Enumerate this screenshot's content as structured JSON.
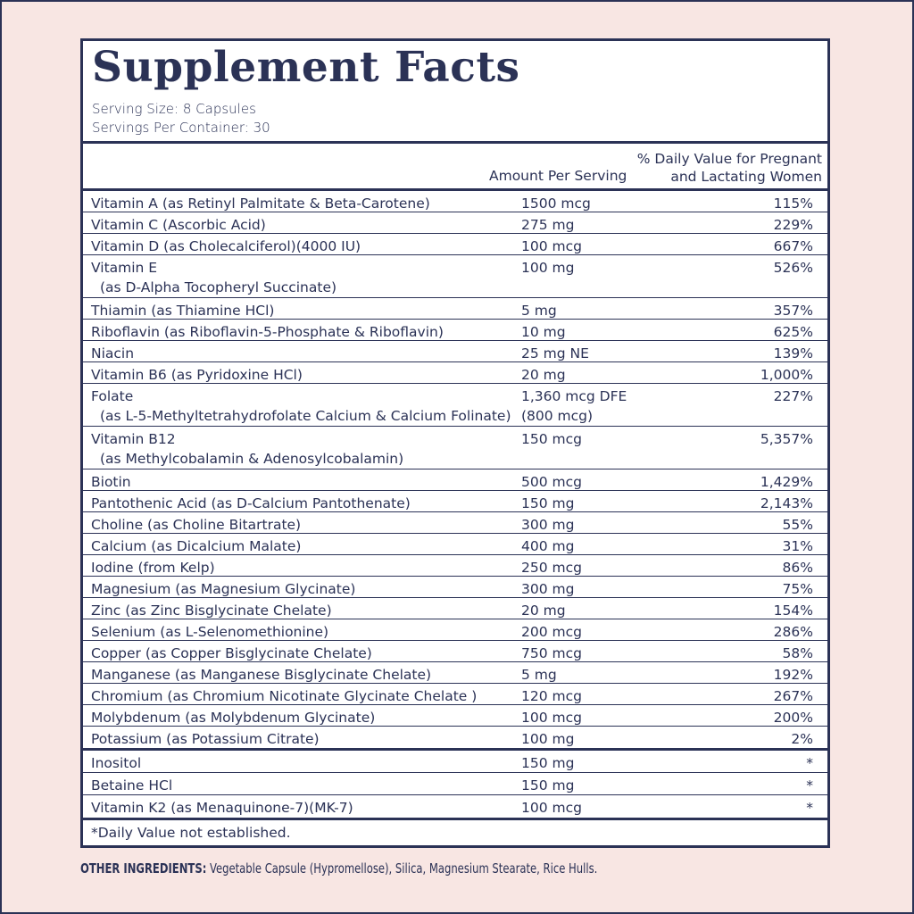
{
  "header": {
    "title": "Supplement Facts",
    "serving_size": "Serving Size: 8 Capsules",
    "servings_per_container": "Servings Per Container: 30"
  },
  "table": {
    "column_headers": {
      "amount": "Amount Per Serving",
      "daily_value": [
        "% Daily Value for Pregnant",
        "and Lactating Women"
      ]
    },
    "rows": [
      {
        "name": "Vitamin A (as Retinyl Palmitate & Beta-Carotene)",
        "amount": "1500 mcg",
        "dv": "115%"
      },
      {
        "name": "Vitamin C (Ascorbic Acid)",
        "amount": "275 mg",
        "dv": "229%"
      },
      {
        "name": "Vitamin D (as Cholecalciferol)(4000 IU)",
        "amount": "100 mcg",
        "dv": "667%"
      },
      {
        "name": "Vitamin E",
        "detail": "(as D-Alpha Tocopheryl Succinate)",
        "amount": "100 mg",
        "dv": "526%"
      },
      {
        "name": "Thiamin (as Thiamine HCl)",
        "amount": "5 mg",
        "dv": "357%"
      },
      {
        "name": "Riboflavin (as Riboflavin-5-Phosphate & Riboflavin)",
        "amount": "10 mg",
        "dv": "625%"
      },
      {
        "name": "Niacin",
        "amount": "25 mg NE",
        "dv": "139%"
      },
      {
        "name": "Vitamin B6 (as Pyridoxine HCl)",
        "amount": "20 mg",
        "dv": "1,000%"
      },
      {
        "name": "Folate",
        "detail": "(as L-5-Methyltetrahydrofolate Calcium & Calcium Folinate)",
        "amount": "1,360 mcg DFE",
        "amount_detail": "(800 mcg)",
        "dv": "227%"
      },
      {
        "name": "Vitamin B12",
        "detail": "(as Methylcobalamin & Adenosylcobalamin)",
        "amount": "150 mcg",
        "dv": "5,357%"
      },
      {
        "name": "Biotin",
        "amount": "500 mcg",
        "dv": "1,429%"
      },
      {
        "name": "Pantothenic Acid (as D-Calcium Pantothenate)",
        "amount": "150 mg",
        "dv": "2,143%"
      },
      {
        "name": "Choline (as Choline Bitartrate)",
        "amount": "300 mg",
        "dv": "55%"
      },
      {
        "name": "Calcium (as Dicalcium Malate)",
        "amount": "400 mg",
        "dv": "31%"
      },
      {
        "name": "Iodine (from Kelp)",
        "amount": "250 mcg",
        "dv": "86%"
      },
      {
        "name": "Magnesium (as Magnesium Glycinate)",
        "amount": "300 mg",
        "dv": "75%"
      },
      {
        "name": "Zinc (as Zinc Bisglycinate Chelate)",
        "amount": "20 mg",
        "dv": "154%"
      },
      {
        "name": "Selenium (as L-Selenomethionine)",
        "amount": "200 mcg",
        "dv": "286%"
      },
      {
        "name": "Copper (as Copper Bisglycinate Chelate)",
        "amount": "750 mcg",
        "dv": "58%"
      },
      {
        "name": "Manganese (as Manganese Bisglycinate Chelate)",
        "amount": "5 mg",
        "dv": "192%"
      },
      {
        "name": "Chromium (as Chromium Nicotinate Glycinate Chelate )",
        "amount": "120 mcg",
        "dv": "267%"
      },
      {
        "name": "Molybdenum (as Molybdenum Glycinate)",
        "amount": "100 mcg",
        "dv": "200%"
      },
      {
        "name": "Potassium (as Potassium Citrate)",
        "amount": "100 mg",
        "dv": "2%"
      }
    ],
    "other_rows": [
      {
        "name": "Inositol",
        "amount": "150 mg",
        "dv": "*"
      },
      {
        "name": "Betaine HCl",
        "amount": "150 mg",
        "dv": "*"
      },
      {
        "name": "Vitamin K2 (as Menaquinone-7)(MK-7)",
        "amount": "100 mcg",
        "dv": "*"
      }
    ]
  },
  "footnote": "*Daily Value not established.",
  "other_ingredients": {
    "label": "OTHER INGREDIENTS:",
    "text": "Vegetable Capsule (Hypromellose), Silica, Magnesium Stearate, Rice Hulls."
  }
}
